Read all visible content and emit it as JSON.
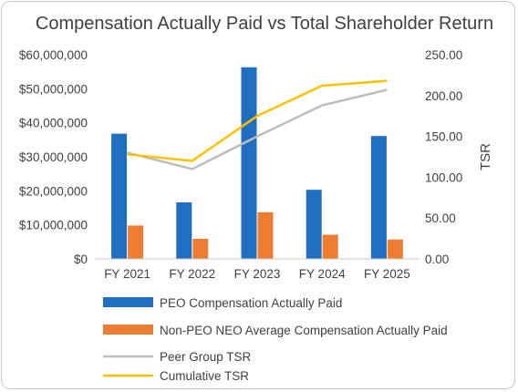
{
  "chart_data": {
    "type": "bar",
    "title": "Compensation Actually Paid vs Total Shareholder Return",
    "categories": [
      "FY 2021",
      "FY 2022",
      "FY 2023",
      "FY 2024",
      "FY 2025"
    ],
    "y_left": {
      "label": "",
      "range": [
        0,
        60000000
      ],
      "ticks": [
        0,
        10000000,
        20000000,
        30000000,
        40000000,
        50000000,
        60000000
      ],
      "tick_labels": [
        "$0",
        "$10,000,000",
        "$20,000,000",
        "$30,000,000",
        "$40,000,000",
        "$50,000,000",
        "$60,000,000"
      ]
    },
    "y_right": {
      "label": "TSR",
      "range": [
        0,
        250
      ],
      "ticks": [
        0,
        50,
        100,
        150,
        200,
        250
      ],
      "tick_labels": [
        "0.00",
        "50.00",
        "100.00",
        "150.00",
        "200.00",
        "250.00"
      ]
    },
    "series": [
      {
        "name": "PEO Compensation Actually Paid",
        "type": "bar",
        "axis": "left",
        "color": "#1f6ec0",
        "values": [
          36800000,
          16600000,
          56300000,
          20300000,
          36100000
        ]
      },
      {
        "name": "Non-PEO NEO Average Compensation Actually Paid",
        "type": "bar",
        "axis": "left",
        "color": "#ed7d31",
        "values": [
          9800000,
          5900000,
          13700000,
          7100000,
          5700000
        ]
      },
      {
        "name": "Peer Group TSR",
        "type": "line",
        "axis": "right",
        "color": "#bdbdbd",
        "values": [
          130,
          110,
          150,
          188,
          207
        ]
      },
      {
        "name": "Cumulative TSR",
        "type": "line",
        "axis": "right",
        "color": "#ffc000",
        "values": [
          128,
          120,
          175,
          212,
          218
        ]
      }
    ],
    "grid": false,
    "legend": "bottom"
  }
}
